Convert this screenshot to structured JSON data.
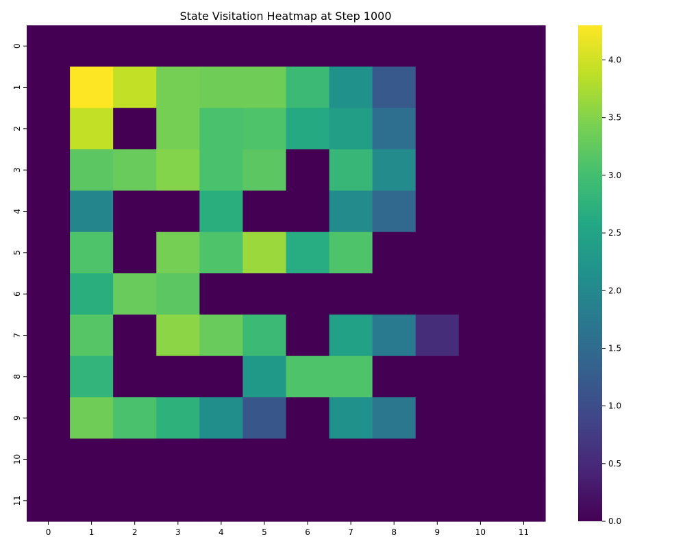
{
  "chart_data": {
    "type": "heatmap",
    "title": "State Visitation Heatmap at Step 1000",
    "xlabel": "",
    "ylabel": "",
    "x_categories": [
      "0",
      "1",
      "2",
      "3",
      "4",
      "5",
      "6",
      "7",
      "8",
      "9",
      "10",
      "11"
    ],
    "y_categories": [
      "0",
      "1",
      "2",
      "3",
      "4",
      "5",
      "6",
      "7",
      "8",
      "9",
      "10",
      "11"
    ],
    "values": [
      [
        0,
        0,
        0,
        0,
        0,
        0,
        0,
        0,
        0,
        0,
        0,
        0
      ],
      [
        0,
        4.3,
        3.9,
        3.4,
        3.35,
        3.35,
        2.9,
        2.15,
        1.2,
        0,
        0,
        0
      ],
      [
        0,
        3.9,
        0,
        3.4,
        3.05,
        3.1,
        2.6,
        2.4,
        1.55,
        0,
        0,
        0
      ],
      [
        0,
        3.2,
        3.3,
        3.5,
        3.05,
        3.2,
        0,
        2.85,
        2.05,
        0,
        0,
        0
      ],
      [
        0,
        1.95,
        0,
        0,
        2.7,
        0,
        0,
        2.05,
        1.45,
        0,
        0,
        0
      ],
      [
        0,
        3.1,
        0,
        3.4,
        3.1,
        3.65,
        2.65,
        3.1,
        0,
        0,
        0,
        0
      ],
      [
        0,
        2.7,
        3.3,
        3.2,
        0,
        0,
        0,
        0,
        0,
        0,
        0,
        0
      ],
      [
        0,
        3.15,
        0,
        3.55,
        3.3,
        2.9,
        0,
        2.45,
        1.75,
        0.55,
        0,
        0
      ],
      [
        0,
        2.8,
        0,
        0,
        0,
        2.3,
        3.1,
        3.1,
        0,
        0,
        0,
        0
      ],
      [
        0,
        3.35,
        3.05,
        2.75,
        2.1,
        1.15,
        0,
        2.15,
        1.7,
        0,
        0,
        0
      ],
      [
        0,
        0,
        0,
        0,
        0,
        0,
        0,
        0,
        0,
        0,
        0,
        0
      ],
      [
        0,
        0,
        0,
        0,
        0,
        0,
        0,
        0,
        0,
        0,
        0,
        0
      ]
    ],
    "vmin": 0,
    "vmax": 4.3,
    "colormap": "viridis",
    "colorbar_ticks": [
      "0.0",
      "0.5",
      "1.0",
      "1.5",
      "2.0",
      "2.5",
      "3.0",
      "3.5",
      "4.0"
    ],
    "colorbar_tick_values": [
      0,
      0.5,
      1,
      1.5,
      2,
      2.5,
      3,
      3.5,
      4
    ],
    "colorbar_placement": "right",
    "grid": false
  }
}
